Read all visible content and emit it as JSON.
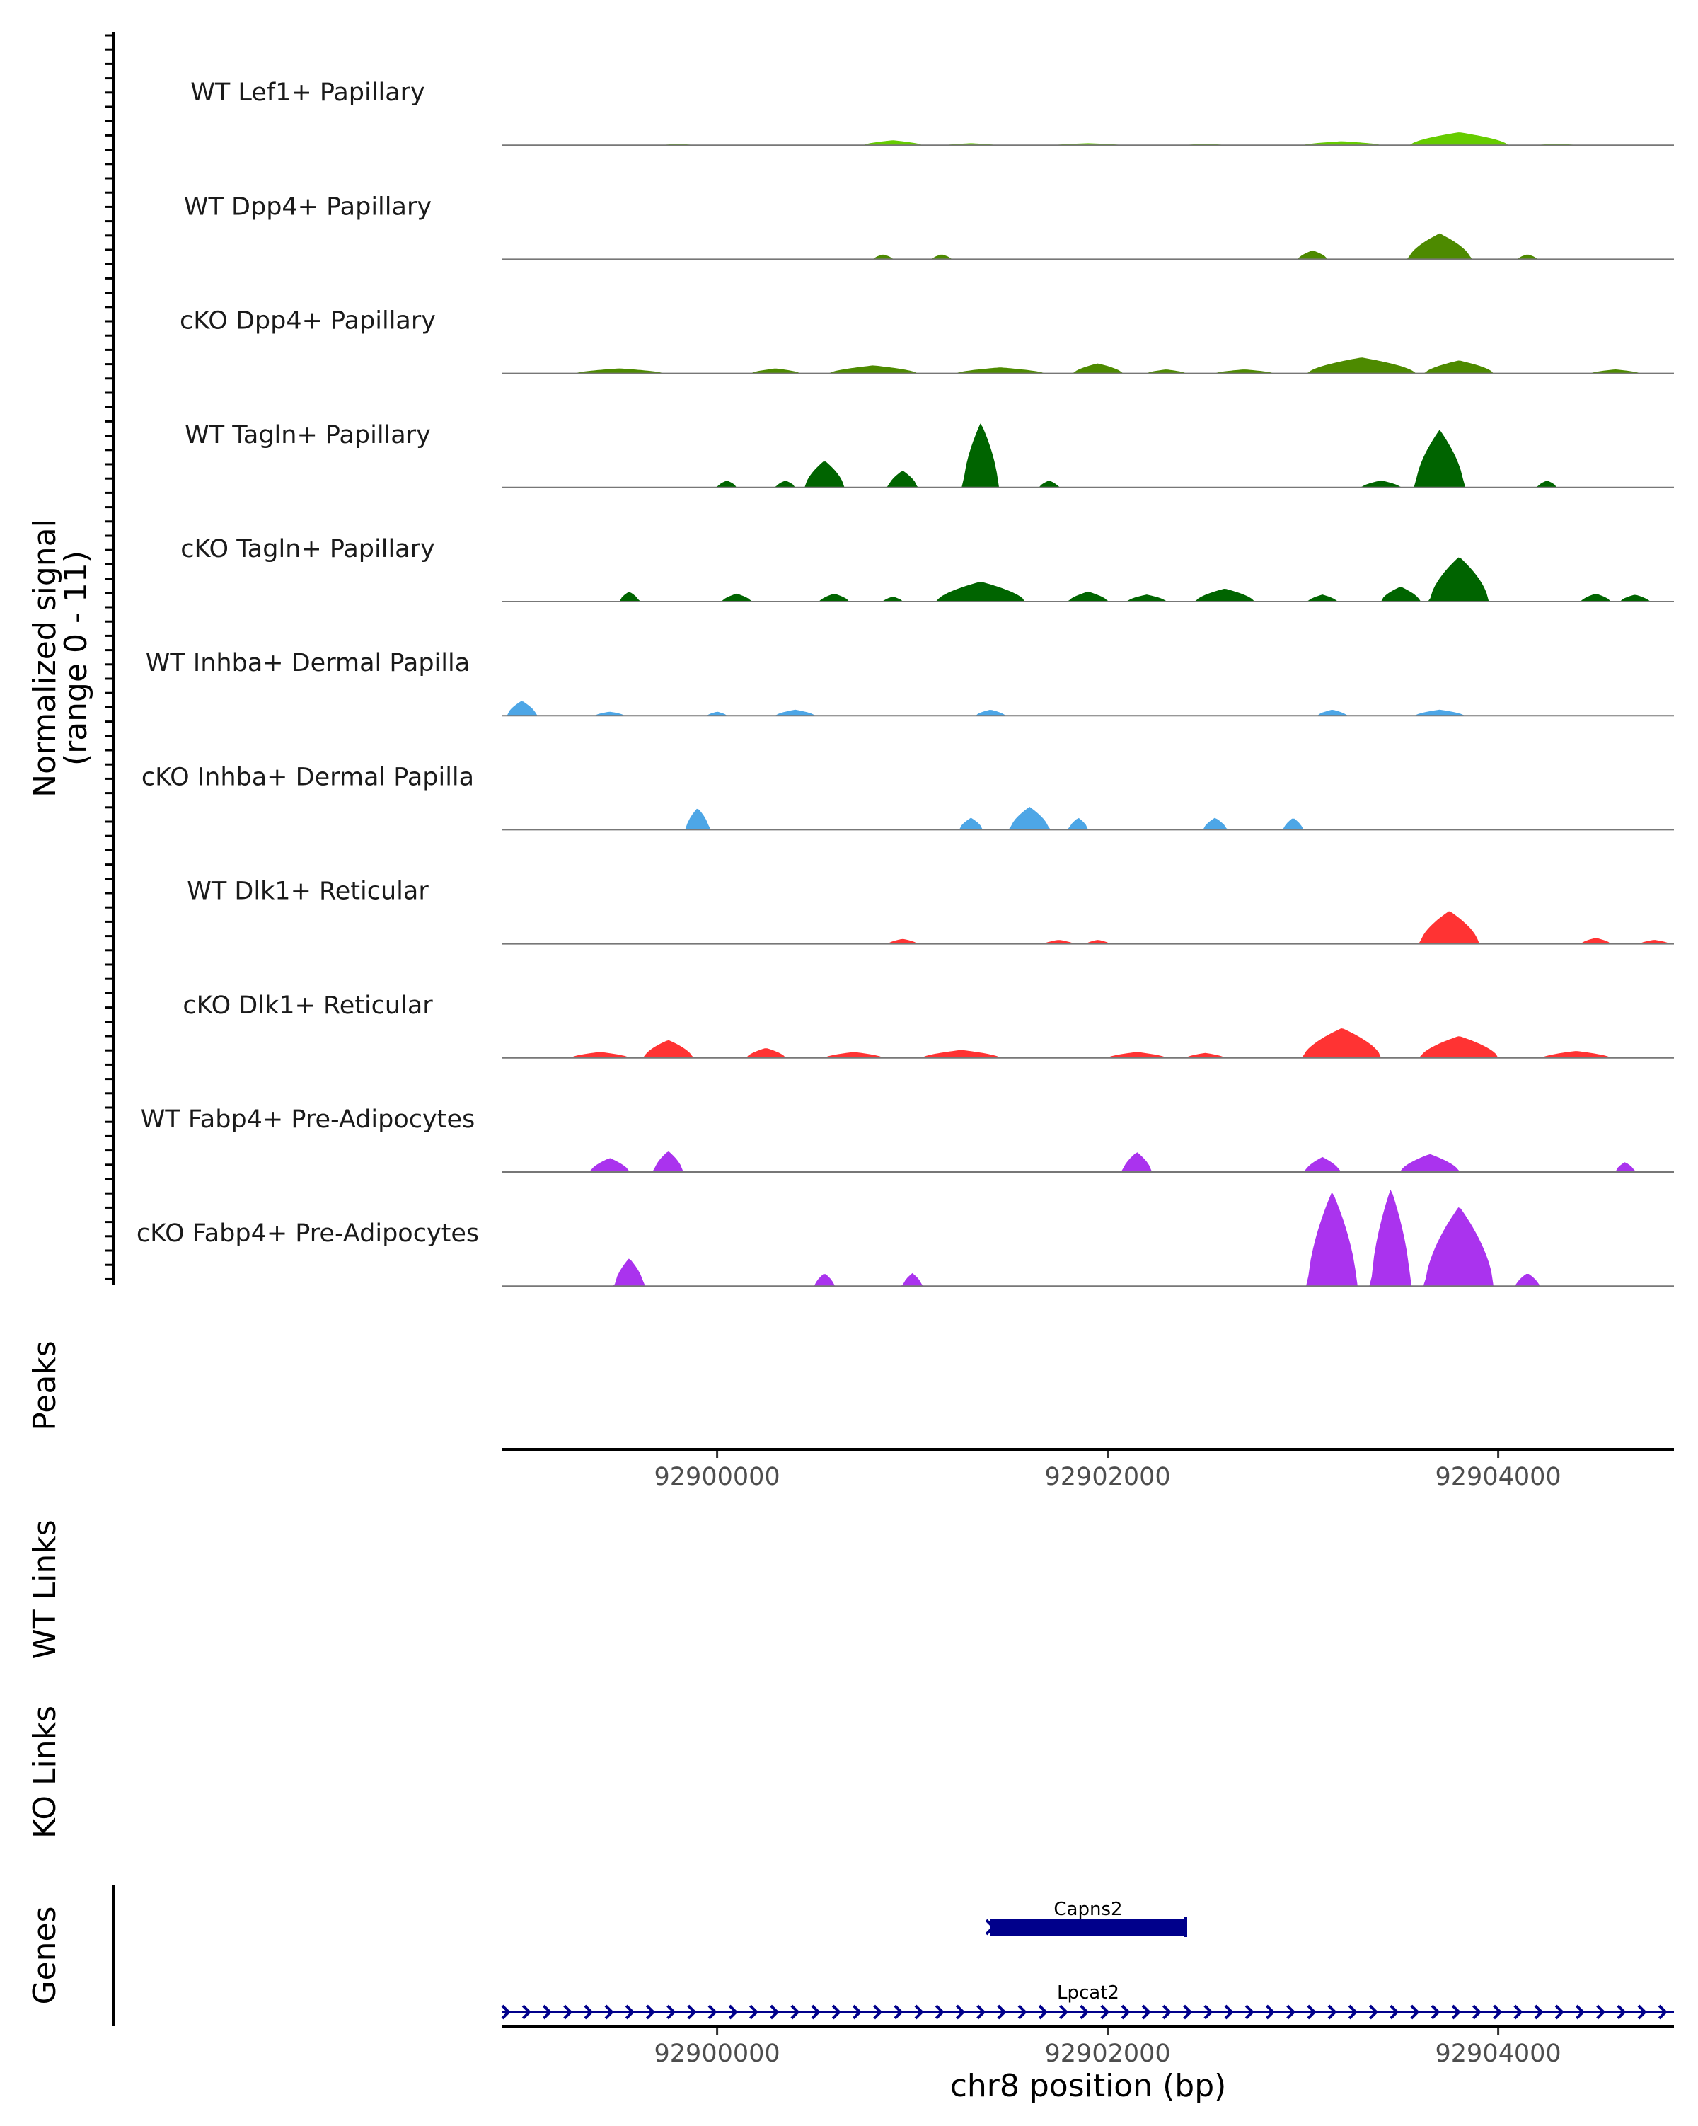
{
  "chart_data": {
    "type": "area",
    "title": "",
    "region": {
      "chromosome": "chr8",
      "start": 92898900,
      "end": 92904900
    },
    "signal_panel": {
      "ylabel": "Normalized signal",
      "ylabel_range": "(range 0 - 11)",
      "ylim": [
        0,
        11
      ],
      "tracks": [
        {
          "name": "WT Lef1+ Papillary",
          "color": "#66cc00",
          "peaks": [
            [
              92899800,
              0.15,
              150
            ],
            [
              92900900,
              0.5,
              300
            ],
            [
              92901300,
              0.2,
              250
            ],
            [
              92901900,
              0.2,
              350
            ],
            [
              92902500,
              0.15,
              200
            ],
            [
              92903200,
              0.4,
              400
            ],
            [
              92903800,
              1.3,
              500
            ],
            [
              92904300,
              0.15,
              200
            ]
          ]
        },
        {
          "name": "WT Dpp4+ Papillary",
          "color": "#4d8a00",
          "peaks": [
            [
              92900850,
              0.5,
              100
            ],
            [
              92901150,
              0.5,
              100
            ],
            [
              92903050,
              0.9,
              150
            ],
            [
              92903700,
              2.6,
              320
            ],
            [
              92904150,
              0.5,
              100
            ]
          ]
        },
        {
          "name": "cKO Dpp4+ Papillary",
          "color": "#4d8a00",
          "peaks": [
            [
              92899500,
              0.5,
              450
            ],
            [
              92900300,
              0.5,
              250
            ],
            [
              92900800,
              0.8,
              450
            ],
            [
              92901450,
              0.6,
              450
            ],
            [
              92901950,
              1.0,
              250
            ],
            [
              92902300,
              0.4,
              200
            ],
            [
              92902700,
              0.4,
              300
            ],
            [
              92903300,
              1.6,
              550
            ],
            [
              92903800,
              1.3,
              350
            ],
            [
              92904600,
              0.4,
              250
            ]
          ]
        },
        {
          "name": "WT Tagln+ Papillary",
          "color": "#006400",
          "peaks": [
            [
              92900050,
              0.7,
              100
            ],
            [
              92900350,
              0.7,
              100
            ],
            [
              92900550,
              2.7,
              200
            ],
            [
              92900950,
              1.7,
              150
            ],
            [
              92901350,
              6.5,
              180
            ],
            [
              92901700,
              0.7,
              100
            ],
            [
              92903400,
              0.7,
              200
            ],
            [
              92903700,
              5.8,
              250
            ],
            [
              92904250,
              0.7,
              100
            ]
          ]
        },
        {
          "name": "cKO Tagln+ Papillary",
          "color": "#006400",
          "peaks": [
            [
              92899550,
              1.0,
              100
            ],
            [
              92900100,
              0.8,
              150
            ],
            [
              92900600,
              0.8,
              150
            ],
            [
              92900900,
              0.5,
              100
            ],
            [
              92901350,
              2.0,
              450
            ],
            [
              92901900,
              1.0,
              200
            ],
            [
              92902200,
              0.7,
              200
            ],
            [
              92902600,
              1.3,
              300
            ],
            [
              92903100,
              0.7,
              150
            ],
            [
              92903500,
              1.5,
              200
            ],
            [
              92903800,
              4.5,
              300
            ],
            [
              92904500,
              0.8,
              150
            ],
            [
              92904700,
              0.7,
              150
            ]
          ]
        },
        {
          "name": "WT Inhba+ Dermal Papilla",
          "color": "#4da6e6",
          "peaks": [
            [
              92899000,
              1.5,
              150
            ],
            [
              92899450,
              0.4,
              150
            ],
            [
              92900000,
              0.4,
              100
            ],
            [
              92900400,
              0.6,
              200
            ],
            [
              92901400,
              0.6,
              150
            ],
            [
              92903150,
              0.6,
              150
            ],
            [
              92903700,
              0.6,
              250
            ]
          ]
        },
        {
          "name": "cKO Inhba+ Dermal Papilla",
          "color": "#4da6e6",
          "peaks": [
            [
              92899900,
              2.2,
              120
            ],
            [
              92901300,
              1.2,
              120
            ],
            [
              92901600,
              2.3,
              200
            ],
            [
              92901850,
              1.2,
              100
            ],
            [
              92902550,
              1.2,
              120
            ],
            [
              92902950,
              1.2,
              100
            ]
          ]
        },
        {
          "name": "WT Dlk1+ Reticular",
          "color": "#ff3333",
          "peaks": [
            [
              92900950,
              0.5,
              150
            ],
            [
              92901750,
              0.4,
              150
            ],
            [
              92901950,
              0.4,
              120
            ],
            [
              92903750,
              3.3,
              300
            ],
            [
              92904500,
              0.6,
              150
            ],
            [
              92904800,
              0.4,
              150
            ]
          ]
        },
        {
          "name": "cKO Dlk1+ Reticular",
          "color": "#ff3333",
          "peaks": [
            [
              92899400,
              0.6,
              300
            ],
            [
              92899750,
              1.8,
              250
            ],
            [
              92900250,
              1.0,
              200
            ],
            [
              92900700,
              0.6,
              300
            ],
            [
              92901250,
              0.8,
              400
            ],
            [
              92902150,
              0.6,
              300
            ],
            [
              92902500,
              0.5,
              200
            ],
            [
              92903200,
              3.0,
              400
            ],
            [
              92903800,
              2.2,
              400
            ],
            [
              92904400,
              0.7,
              350
            ]
          ]
        },
        {
          "name": "WT Fabp4+ Pre-Adipocytes",
          "color": "#aa33ee",
          "peaks": [
            [
              92899450,
              1.4,
              200
            ],
            [
              92899750,
              2.1,
              150
            ],
            [
              92902150,
              2.0,
              150
            ],
            [
              92903100,
              1.5,
              180
            ],
            [
              92903650,
              1.8,
              300
            ],
            [
              92904650,
              1.0,
              100
            ]
          ]
        },
        {
          "name": "cKO Fabp4+ Pre-Adipocytes",
          "color": "#aa33ee",
          "peaks": [
            [
              92899550,
              2.8,
              150
            ],
            [
              92900550,
              1.3,
              100
            ],
            [
              92901000,
              1.3,
              100
            ],
            [
              92903150,
              9.5,
              250
            ],
            [
              92903450,
              9.8,
              200
            ],
            [
              92903800,
              8.0,
              350
            ],
            [
              92904150,
              1.3,
              120
            ]
          ]
        }
      ]
    },
    "peaks_panel": {
      "label": "Peaks",
      "ticks": [
        "92900000",
        "92902000",
        "92904000"
      ]
    },
    "links_panels": [
      "WT Links",
      "KO Links"
    ],
    "genes_panel": {
      "label": "Genes",
      "genes": [
        {
          "name": "Capns2",
          "start": 92901400,
          "end": 92902400,
          "style": "block"
        },
        {
          "name": "Lpcat2",
          "start": 92898900,
          "end": 92904900,
          "style": "arrows"
        }
      ],
      "ticks": [
        "92900000",
        "92902000",
        "92904000"
      ],
      "xlabel": "chr8 position (bp)"
    },
    "colors": {
      "axis": "#000000",
      "baseline": "#777777",
      "gene": "#00008b",
      "tick_text": "#4d4d4d"
    }
  }
}
